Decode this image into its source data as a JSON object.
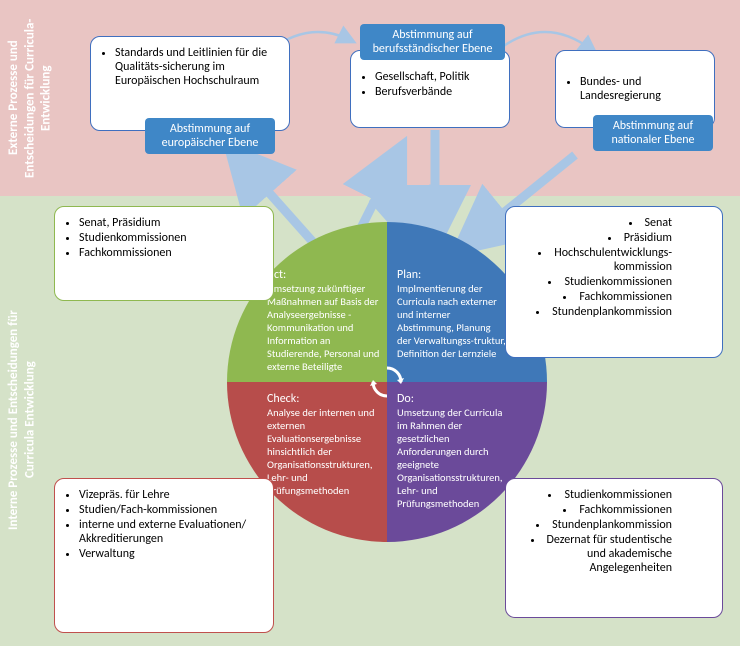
{
  "sidebar_top": "Externe Prozesse und Entscheidungen für Curricula-Entwicklung",
  "sidebar_bottom": "Interne Prozesse und Entscheidungen für Curricula Entwicklung",
  "colors": {
    "top_band": "#e9c5c3",
    "bottom_band": "#d5e2c8",
    "blue_tag": "#3f87c7",
    "arrow": "#a8c6e5",
    "borders": {
      "blue": "#3f6fbf",
      "green": "#8fb850",
      "red": "#c0504d",
      "purple": "#6b4a9a"
    }
  },
  "ext_boxes": {
    "left": [
      "Standards und Leitlinien für die Qualitäts-sicherung im Europäischen Hochschulraum"
    ],
    "middle": [
      "Gesellschaft, Politik",
      "Berufsverbände"
    ],
    "right": [
      "Bundes- und Landesregierung"
    ]
  },
  "ext_tags": {
    "left": "Abstimmung auf europäischer Ebene",
    "middle": "Abstimmung auf berufsständischer Ebene",
    "right": "Abstimmung  auf nationaler Ebene"
  },
  "quadrants": {
    "act": {
      "title": "Act:",
      "text": "Umsetzung zukünftiger Maßnahmen auf Basis der Analyseergebnisse - Kommunikation und Information an Studierende, Personal und externe Beteiligte",
      "color": "#8fb850"
    },
    "plan": {
      "title": "Plan:",
      "text": "Implmentierung der Curricula nach externer  und interner Abstimmung, Planung der Verwaltungss-truktur, Definition der Lernziele",
      "color": "#3f78b8"
    },
    "check": {
      "title": "Check:",
      "text": "Analyse der internen und externen Evaluationsergebnisse hinsichtlich der Organisationsstrukturen, Lehr- und Prüfungsmethoden",
      "color": "#b74d4b"
    },
    "do": {
      "title": "Do:",
      "text": "Umsetzung der Curricula im Rahmen der gesetzlichen Anforderungen durch geeignete Organisationsstrukturen, Lehr- und Prüfungsmethoden",
      "color": "#6b4a9a"
    }
  },
  "corner_boxes": {
    "act": {
      "align": "left",
      "items": [
        "Senat, Präsidium",
        "Studienkommissionen",
        "Fachkommissionen"
      ]
    },
    "plan": {
      "align": "right",
      "items": [
        "Senat",
        "Präsidium",
        "Hochschulentwicklungs-kommission",
        "Studienkommissionen",
        "Fachkommissionen",
        "Stundenplankommission"
      ]
    },
    "check": {
      "align": "left",
      "items": [
        "Vizepräs. für Lehre",
        "Studien/Fach-kommissionen",
        "interne und externe Evaluationen/ Akkreditierungen",
        "Verwaltung"
      ]
    },
    "do": {
      "align": "right",
      "items": [
        "Studienkommissionen",
        "Fachkommissionen",
        "Stundenplankommission",
        "Dezernat für studentische und akademische Angelegenheiten"
      ]
    }
  }
}
